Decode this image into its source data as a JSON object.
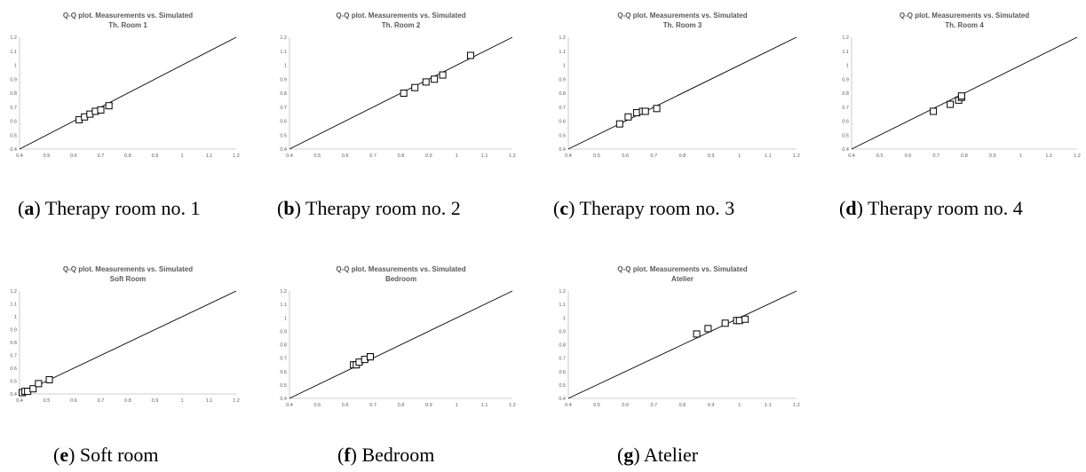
{
  "chart_data": [
    {
      "type": "scatter",
      "title": "Q-Q plot. Measurements vs. Simulated",
      "subtitle": "Th. Room 1",
      "caption_letter": "a",
      "caption_text": "Therapy room no. 1",
      "xlim": [
        0.4,
        1.2
      ],
      "ylim": [
        0.4,
        1.2
      ],
      "xticks": [
        "0.4",
        "0.5",
        "0.6",
        "0.7",
        "0.8",
        "0.9",
        "1",
        "1.1",
        "1.2"
      ],
      "yticks": [
        "0.4",
        "0.5",
        "0.6",
        "0.7",
        "0.8",
        "0.9",
        "1",
        "1.1",
        "1.2"
      ],
      "reference_line": [
        [
          0.4,
          0.4
        ],
        [
          1.2,
          1.2
        ]
      ],
      "points": [
        [
          0.62,
          0.61
        ],
        [
          0.64,
          0.63
        ],
        [
          0.66,
          0.65
        ],
        [
          0.68,
          0.67
        ],
        [
          0.7,
          0.68
        ],
        [
          0.73,
          0.71
        ]
      ]
    },
    {
      "type": "scatter",
      "title": "Q-Q plot. Measurements vs. Simulated",
      "subtitle": "Th. Room 2",
      "caption_letter": "b",
      "caption_text": "Therapy room no. 2",
      "xlim": [
        0.4,
        1.2
      ],
      "ylim": [
        0.4,
        1.2
      ],
      "xticks": [
        "0.4",
        "0.5",
        "0.6",
        "0.7",
        "0.8",
        "0.9",
        "1",
        "1.1",
        "1.2"
      ],
      "yticks": [
        "0.4",
        "0.5",
        "0.6",
        "0.7",
        "0.8",
        "0.9",
        "1",
        "1.1",
        "1.2"
      ],
      "reference_line": [
        [
          0.4,
          0.4
        ],
        [
          1.2,
          1.2
        ]
      ],
      "points": [
        [
          0.81,
          0.8
        ],
        [
          0.85,
          0.84
        ],
        [
          0.89,
          0.88
        ],
        [
          0.92,
          0.9
        ],
        [
          0.95,
          0.93
        ],
        [
          1.05,
          1.07
        ]
      ]
    },
    {
      "type": "scatter",
      "title": "Q-Q plot. Measurements vs. Simulated",
      "subtitle": "Th. Room 3",
      "caption_letter": "c",
      "caption_text": "Therapy room no. 3",
      "xlim": [
        0.4,
        1.2
      ],
      "ylim": [
        0.4,
        1.2
      ],
      "xticks": [
        "0.4",
        "0.5",
        "0.6",
        "0.7",
        "0.8",
        "0.9",
        "1",
        "1.1",
        "1.2"
      ],
      "yticks": [
        "0.4",
        "0.5",
        "0.6",
        "0.7",
        "0.8",
        "0.9",
        "1",
        "1.1",
        "1.2"
      ],
      "reference_line": [
        [
          0.4,
          0.4
        ],
        [
          1.2,
          1.2
        ]
      ],
      "points": [
        [
          0.58,
          0.58
        ],
        [
          0.61,
          0.63
        ],
        [
          0.64,
          0.66
        ],
        [
          0.66,
          0.67
        ],
        [
          0.67,
          0.67
        ],
        [
          0.71,
          0.69
        ]
      ]
    },
    {
      "type": "scatter",
      "title": "Q-Q plot. Measurements vs. Simulated",
      "subtitle": "Th. Room 4",
      "caption_letter": "d",
      "caption_text": "Therapy room no. 4",
      "xlim": [
        0.4,
        1.2
      ],
      "ylim": [
        0.4,
        1.2
      ],
      "xticks": [
        "0.4",
        "0.5",
        "0.6",
        "0.7",
        "0.8",
        "0.9",
        "1",
        "1.1",
        "1.2"
      ],
      "yticks": [
        "0.4",
        "0.5",
        "0.6",
        "0.7",
        "0.8",
        "0.9",
        "1",
        "1.1",
        "1.2"
      ],
      "reference_line": [
        [
          0.4,
          0.4
        ],
        [
          1.2,
          1.2
        ]
      ],
      "points": [
        [
          0.69,
          0.67
        ],
        [
          0.75,
          0.72
        ],
        [
          0.78,
          0.75
        ],
        [
          0.79,
          0.77
        ],
        [
          0.79,
          0.78
        ]
      ]
    },
    {
      "type": "scatter",
      "title": "Q-Q plot. Measurements vs. Simulated",
      "subtitle": "Soft Room",
      "caption_letter": "e",
      "caption_text": "Soft room",
      "xlim": [
        0.4,
        1.2
      ],
      "ylim": [
        0.4,
        1.2
      ],
      "xticks": [
        "0.4",
        "0.5",
        "0.6",
        "0.7",
        "0.8",
        "0.9",
        "1",
        "1.1",
        "1.2"
      ],
      "yticks": [
        "0.4",
        "0.5",
        "0.6",
        "0.7",
        "0.8",
        "0.9",
        "1",
        "1.1",
        "1.2"
      ],
      "reference_line": [
        [
          0.4,
          0.4
        ],
        [
          1.2,
          1.2
        ]
      ],
      "points": [
        [
          0.41,
          0.41
        ],
        [
          0.42,
          0.42
        ],
        [
          0.43,
          0.42
        ],
        [
          0.45,
          0.44
        ],
        [
          0.47,
          0.48
        ],
        [
          0.51,
          0.51
        ]
      ]
    },
    {
      "type": "scatter",
      "title": "Q-Q plot. Measurements vs. Simulated",
      "subtitle": "Bedroom",
      "caption_letter": "f",
      "caption_text": "Bedroom",
      "xlim": [
        0.4,
        1.2
      ],
      "ylim": [
        0.4,
        1.2
      ],
      "xticks": [
        "0.4",
        "0.5",
        "0.6",
        "0.7",
        "0.8",
        "0.9",
        "1",
        "1.1",
        "1.2"
      ],
      "yticks": [
        "0.4",
        "0.5",
        "0.6",
        "0.7",
        "0.8",
        "0.9",
        "1",
        "1.1",
        "1.2"
      ],
      "reference_line": [
        [
          0.4,
          0.4
        ],
        [
          1.2,
          1.2
        ]
      ],
      "points": [
        [
          0.63,
          0.65
        ],
        [
          0.64,
          0.65
        ],
        [
          0.65,
          0.67
        ],
        [
          0.67,
          0.69
        ],
        [
          0.69,
          0.71
        ],
        [
          0.69,
          0.71
        ]
      ]
    },
    {
      "type": "scatter",
      "title": "Q-Q plot. Measurements vs. Simulated",
      "subtitle": "Atelier",
      "caption_letter": "g",
      "caption_text": "Atelier",
      "xlim": [
        0.4,
        1.2
      ],
      "ylim": [
        0.4,
        1.2
      ],
      "xticks": [
        "0.4",
        "0.5",
        "0.6",
        "0.7",
        "0.8",
        "0.9",
        "1",
        "1.1",
        "1.2"
      ],
      "yticks": [
        "0.4",
        "0.5",
        "0.6",
        "0.7",
        "0.8",
        "0.9",
        "1",
        "1.1",
        "1.2"
      ],
      "reference_line": [
        [
          0.4,
          0.4
        ],
        [
          1.2,
          1.2
        ]
      ],
      "points": [
        [
          0.85,
          0.88
        ],
        [
          0.89,
          0.92
        ],
        [
          0.95,
          0.96
        ],
        [
          0.99,
          0.98
        ],
        [
          1.0,
          0.98
        ],
        [
          1.02,
          0.99
        ]
      ]
    }
  ],
  "colors": {
    "axis": "#bfbfbf",
    "text": "#595959",
    "line": "#000000",
    "marker": "#000000"
  }
}
